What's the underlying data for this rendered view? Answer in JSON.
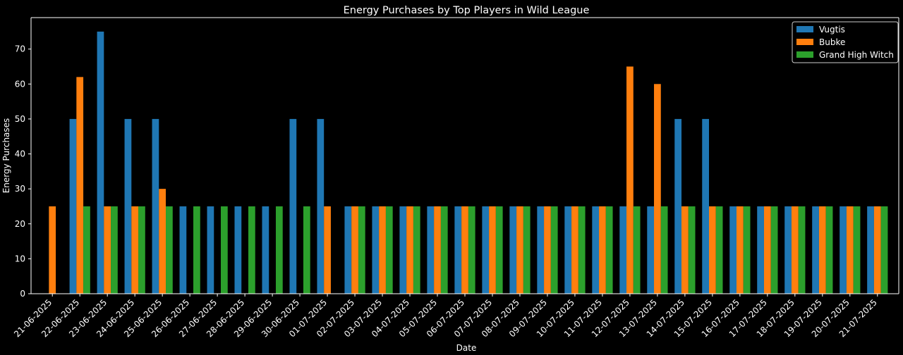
{
  "chart_data": {
    "type": "bar",
    "title": "Energy Purchases by Top Players in Wild League",
    "xlabel": "Date",
    "ylabel": "Energy Purchases",
    "ylim": [
      0,
      79
    ],
    "yticks": [
      0,
      10,
      20,
      30,
      40,
      50,
      60,
      70
    ],
    "grid": false,
    "legend_position": "top-right",
    "categories": [
      "21-06-2025",
      "22-06-2025",
      "23-06-2025",
      "24-06-2025",
      "25-06-2025",
      "26-06-2025",
      "27-06-2025",
      "28-06-2025",
      "29-06-2025",
      "30-06-2025",
      "01-07-2025",
      "02-07-2025",
      "03-07-2025",
      "04-07-2025",
      "05-07-2025",
      "06-07-2025",
      "07-07-2025",
      "08-07-2025",
      "09-07-2025",
      "10-07-2025",
      "11-07-2025",
      "12-07-2025",
      "13-07-2025",
      "14-07-2025",
      "15-07-2025",
      "16-07-2025",
      "17-07-2025",
      "18-07-2025",
      "19-07-2025",
      "20-07-2025",
      "21-07-2025"
    ],
    "series": [
      {
        "name": "Vugtis",
        "color": "#1f77b4",
        "values": [
          0,
          50,
          75,
          50,
          50,
          25,
          25,
          25,
          25,
          50,
          50,
          25,
          25,
          25,
          25,
          25,
          25,
          25,
          25,
          25,
          25,
          25,
          25,
          50,
          50,
          25,
          25,
          25,
          25,
          25,
          25
        ]
      },
      {
        "name": "Bubke",
        "color": "#ff7f0e",
        "values": [
          25,
          62,
          25,
          25,
          30,
          0,
          0,
          0,
          0,
          0,
          25,
          25,
          25,
          25,
          25,
          25,
          25,
          25,
          25,
          25,
          25,
          65,
          60,
          25,
          25,
          25,
          25,
          25,
          25,
          25,
          25
        ]
      },
      {
        "name": "Grand High Witch",
        "color": "#2ca02c",
        "values": [
          0,
          25,
          25,
          25,
          25,
          25,
          25,
          25,
          25,
          25,
          0,
          25,
          25,
          25,
          25,
          25,
          25,
          25,
          25,
          25,
          25,
          25,
          25,
          25,
          25,
          25,
          25,
          25,
          25,
          25,
          25
        ]
      }
    ]
  }
}
